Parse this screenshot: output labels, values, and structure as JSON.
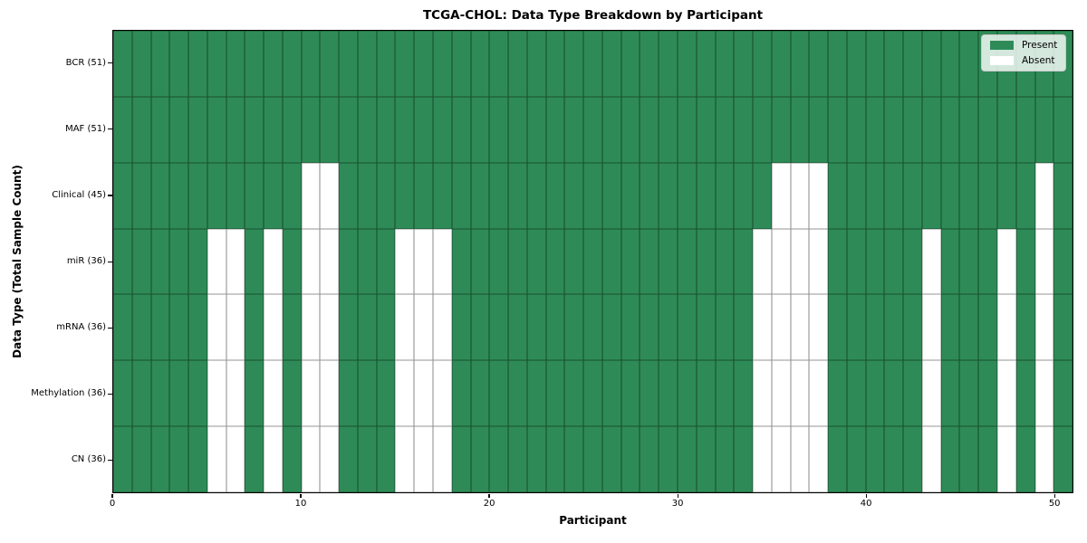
{
  "chart_data": {
    "type": "heatmap",
    "title": "TCGA-CHOL: Data Type Breakdown by Participant",
    "xlabel": "Participant",
    "ylabel": "Data Type (Total Sample Count)",
    "x_ticks": [
      0,
      10,
      20,
      30,
      40,
      50
    ],
    "xlim": [
      0,
      51
    ],
    "n_participants": 51,
    "grid": "cell-borders",
    "legend_position": "upper-right",
    "colors": {
      "present": "#2e8b57",
      "absent": "#ffffff",
      "cell_edge_on_green": "#1e4d33",
      "cell_edge_on_white": "#8c8c8c",
      "frame": "#000000"
    },
    "legend": [
      {
        "label": "Present",
        "color": "#2e8b57"
      },
      {
        "label": "Absent",
        "color": "#ffffff"
      }
    ],
    "rows": [
      {
        "label": "BCR (51)",
        "total": 51,
        "absent": []
      },
      {
        "label": "MAF (51)",
        "total": 51,
        "absent": []
      },
      {
        "label": "Clinical (45)",
        "total": 45,
        "absent": [
          10,
          11,
          35,
          36,
          37,
          49
        ]
      },
      {
        "label": "miR (36)",
        "total": 36,
        "absent": [
          5,
          6,
          8,
          10,
          11,
          15,
          16,
          17,
          34,
          35,
          36,
          37,
          43,
          47,
          49
        ]
      },
      {
        "label": "mRNA (36)",
        "total": 36,
        "absent": [
          5,
          6,
          8,
          10,
          11,
          15,
          16,
          17,
          34,
          35,
          36,
          37,
          43,
          47,
          49
        ]
      },
      {
        "label": "Methylation (36)",
        "total": 36,
        "absent": [
          5,
          6,
          8,
          10,
          11,
          15,
          16,
          17,
          34,
          35,
          36,
          37,
          43,
          47,
          49
        ]
      },
      {
        "label": "CN (36)",
        "total": 36,
        "absent": [
          5,
          6,
          8,
          10,
          11,
          15,
          16,
          17,
          34,
          35,
          36,
          37,
          43,
          47,
          49
        ]
      }
    ]
  }
}
